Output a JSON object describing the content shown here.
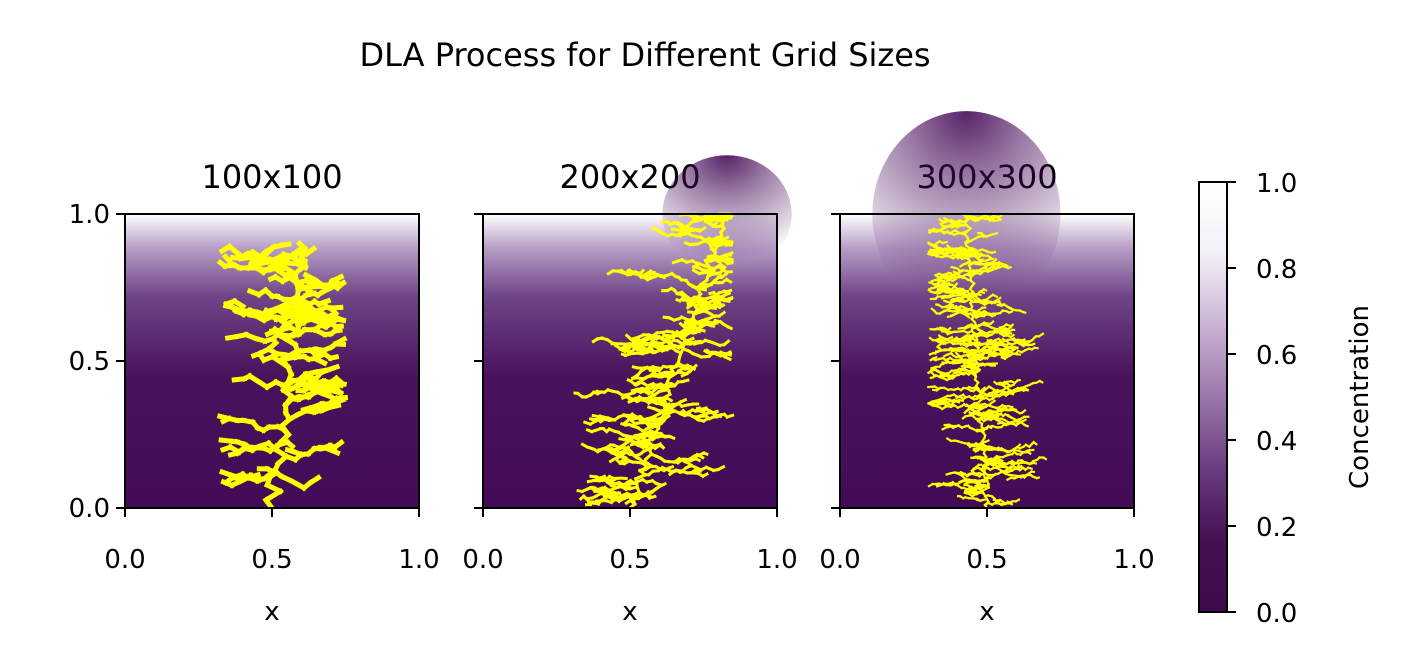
{
  "figure": {
    "title": "DLA Process for Different Grid Sizes"
  },
  "colors": {
    "colormap": [
      "#3f0a4c",
      "#441152",
      "#6b3c80",
      "#9a77ab",
      "#cab3d3",
      "#f3f0f7",
      "#ffffff"
    ],
    "cluster": "#ffff00",
    "axes": "#000000"
  },
  "chart_data": [
    {
      "type": "heatmap",
      "title": "100x100",
      "xlabel": "x",
      "ylabel": "",
      "xlim": [
        0.0,
        1.0
      ],
      "ylim": [
        0.0,
        1.0
      ],
      "x_ticks": [
        "0.0",
        "0.5",
        "1.0"
      ],
      "y_ticks": [
        "0.0",
        "0.5",
        "1.0"
      ],
      "show_y_tick_labels": true,
      "grid": false,
      "cluster_color": "#ffff00",
      "cluster_extent": {
        "x": [
          0.32,
          0.75
        ],
        "y": [
          0.02,
          0.9
        ]
      },
      "cluster_tip": {
        "x": 0.61,
        "y": 0.9
      }
    },
    {
      "type": "heatmap",
      "title": "200x200",
      "xlabel": "x",
      "ylabel": "",
      "xlim": [
        0.0,
        1.0
      ],
      "ylim": [
        0.0,
        1.0
      ],
      "x_ticks": [
        "0.0",
        "0.5",
        "1.0"
      ],
      "y_ticks": [
        "0.0",
        "0.5",
        "1.0"
      ],
      "show_y_tick_labels": false,
      "grid": false,
      "cluster_color": "#ffff00",
      "cluster_extent": {
        "x": [
          0.23,
          0.85
        ],
        "y": [
          0.01,
          1.0
        ]
      },
      "cluster_tip": {
        "x": 0.83,
        "y": 1.0
      }
    },
    {
      "type": "heatmap",
      "title": "300x300",
      "xlabel": "x",
      "ylabel": "",
      "xlim": [
        0.0,
        1.0
      ],
      "ylim": [
        0.0,
        1.0
      ],
      "x_ticks": [
        "0.0",
        "0.5",
        "1.0"
      ],
      "y_ticks": [
        "0.0",
        "0.5",
        "1.0"
      ],
      "show_y_tick_labels": false,
      "grid": false,
      "cluster_color": "#ffff00",
      "cluster_extent": {
        "x": [
          0.3,
          0.75
        ],
        "y": [
          0.01,
          1.0
        ]
      },
      "cluster_tip": {
        "x": 0.43,
        "y": 1.0
      }
    }
  ],
  "colorbar": {
    "label": "Concentration",
    "ticks": [
      "0.0",
      "0.2",
      "0.4",
      "0.6",
      "0.8",
      "1.0"
    ],
    "range": [
      0.0,
      1.0
    ]
  }
}
